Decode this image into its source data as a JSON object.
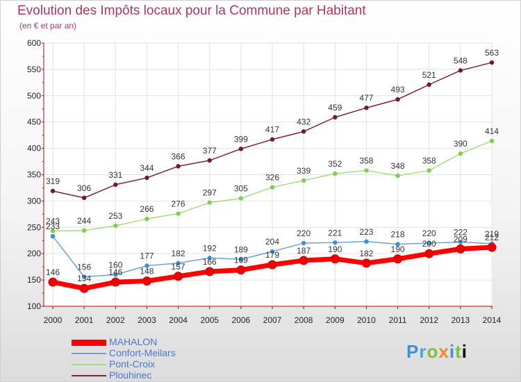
{
  "title": "Evolution des Impôts locaux pour la Commune par Habitant",
  "subtitle": "(en € et par an)",
  "logo": [
    "P",
    "r",
    "o",
    "x",
    "i",
    "t",
    "i"
  ],
  "chart_data": {
    "type": "line",
    "x": [
      "2000",
      "2001",
      "2002",
      "2003",
      "2004",
      "2005",
      "2006",
      "2007",
      "2008",
      "2009",
      "2010",
      "2011",
      "2012",
      "2013",
      "2014"
    ],
    "ylim": [
      100,
      600
    ],
    "yticks": [
      "100",
      "150",
      "200",
      "250",
      "300",
      "350",
      "400",
      "450",
      "500",
      "550",
      "600"
    ],
    "legend_position": "bottom-left",
    "series": [
      {
        "name": "Plouhinec",
        "color": "#7a2433",
        "marker": "#6b1d2c",
        "values": [
          319,
          306,
          331,
          344,
          366,
          377,
          399,
          417,
          432,
          459,
          477,
          493,
          521,
          548,
          563
        ],
        "labels": [
          "319",
          "306",
          "331",
          "344",
          "366",
          "377",
          "399",
          "417",
          "432",
          "459",
          "477",
          "493",
          "521",
          "548",
          "563"
        ]
      },
      {
        "name": "Pont-Croix",
        "color": "#a4dd82",
        "marker": "#7fd04a",
        "values": [
          243,
          244,
          253,
          266,
          276,
          297,
          305,
          326,
          339,
          352,
          358,
          348,
          358,
          390,
          414
        ],
        "labels": [
          "243",
          "244",
          "253",
          "266",
          "276",
          "297",
          "305",
          "326",
          "339",
          "352",
          "358",
          "348",
          "358",
          "390",
          "414"
        ]
      },
      {
        "name": "Confort-Meilars",
        "color": "#6aa3d8",
        "marker": "#3e8fd8",
        "values": [
          233,
          156,
          160,
          177,
          182,
          192,
          189,
          204,
          220,
          221,
          223,
          218,
          220,
          222,
          219
        ],
        "labels": [
          "233",
          "156",
          "160",
          "177",
          "182",
          "192",
          "189",
          "204",
          "220",
          "221",
          "223",
          "218",
          "220",
          "222",
          "219"
        ]
      },
      {
        "name": "MAHALON",
        "color": "#ff0000",
        "marker": "#ee0000",
        "values": [
          146,
          134,
          146,
          148,
          157,
          166,
          169,
          179,
          187,
          190,
          182,
          190,
          200,
          209,
          212
        ],
        "labels": [
          "146",
          "134",
          "146",
          "148",
          "157",
          "166",
          "169",
          "179",
          "187",
          "190",
          "182",
          "190",
          "200",
          "209",
          "212"
        ]
      }
    ],
    "legend": [
      {
        "name": "MAHALON",
        "color": "#ff0000"
      },
      {
        "name": "Confort-Meilars",
        "color": "#6aa3d8"
      },
      {
        "name": "Pont-Croix",
        "color": "#a4dd82"
      },
      {
        "name": "Plouhinec",
        "color": "#7a2433"
      }
    ]
  }
}
